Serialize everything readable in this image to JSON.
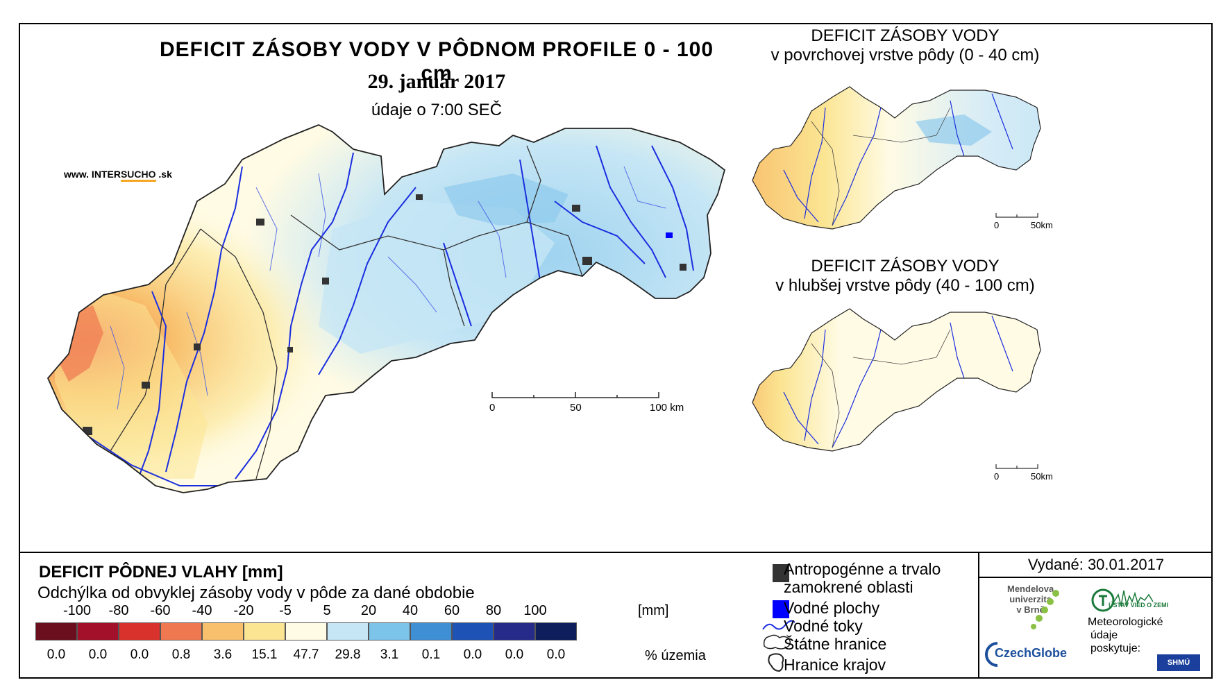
{
  "main_map": {
    "title": "DEFICIT ZÁSOBY VODY V PÔDNOM PROFILE 0 - 100 cm",
    "date": "29. január 2017",
    "time": "údaje o 7:00 SEČ",
    "url_prefix": "www. INTER",
    "url_accent": "SUCHO",
    "url_suffix": " .sk",
    "scale": {
      "t0": "0",
      "t1": "50",
      "t2": "100 km"
    }
  },
  "inset_top": {
    "title_1": "DEFICIT ZÁSOBY VODY",
    "title_2": "v povrchovej vrstve pôdy (0 - 40 cm)",
    "scale": {
      "t0": "0",
      "t1": "50km"
    }
  },
  "inset_bottom": {
    "title_1": "DEFICIT ZÁSOBY VODY",
    "title_2": "v hlubšej vrstve pôdy (40 - 100 cm)",
    "scale": {
      "t0": "0",
      "t1": "50km"
    }
  },
  "legend": {
    "title": "DEFICIT PÔDNEJ VLAHY [mm]",
    "subtitle": "Odchýlka od obvyklej zásoby vody v pôde za dané obdobie",
    "unit_mm": "[mm]",
    "unit_pct": "% územia",
    "colors": [
      "#6b0f1e",
      "#a3102a",
      "#d9312c",
      "#f07850",
      "#f8bf6c",
      "#fbe593",
      "#fffbe4",
      "#c6e6f5",
      "#7cc4ea",
      "#3f8fd5",
      "#1f52b5",
      "#262b8a",
      "#0e1e5c"
    ],
    "ticks": [
      "-100",
      "-80",
      "-60",
      "-40",
      "-20",
      "-5",
      "5",
      "20",
      "40",
      "60",
      "80",
      "100"
    ],
    "percents": [
      "0.0",
      "0.0",
      "0.0",
      "0.8",
      "3.6",
      "15.1",
      "47.7",
      "29.8",
      "3.1",
      "0.1",
      "0.0",
      "0.0",
      "0.0"
    ]
  },
  "key": {
    "anthropogenic_1": "Antropogénne a trvalo",
    "anthropogenic_2": "zamokrené oblasti",
    "water_surfaces": "Vodné plochy",
    "streams": "Vodné toky",
    "state_border": "Štátne hranice",
    "region_border": "Hranice krajov"
  },
  "issued": {
    "text": "Vydané: 30.01.2017",
    "mendel_1": "Mendelova",
    "mendel_2": "univerzita",
    "mendel_3": "v Brně",
    "czechglobe": "CzechGlobe",
    "uvgz": "ÚSTAV VIED O ZEMI",
    "meteo_1": "Meteorologické",
    "meteo_2": "údaje",
    "meteo_3": "poskytuje:",
    "shmu": "SHMÚ"
  }
}
